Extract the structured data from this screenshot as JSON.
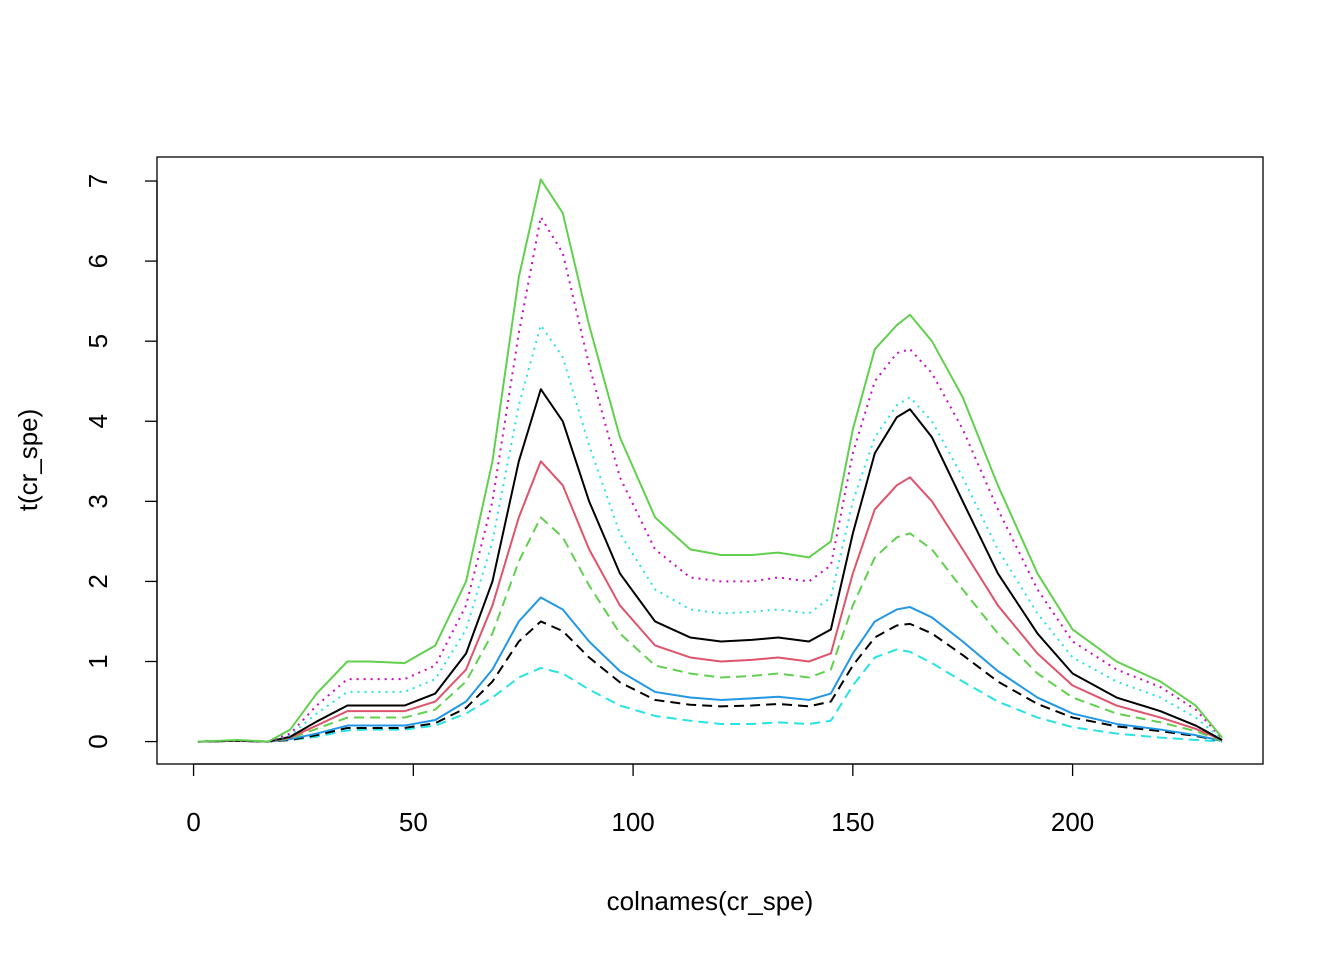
{
  "chart_data": {
    "type": "line",
    "x_label": "colnames(cr_spe)",
    "y_label": "t(cr_spe)",
    "x": [
      1,
      10,
      17,
      22,
      28,
      35,
      40,
      48,
      55,
      62,
      68,
      74,
      79,
      84,
      90,
      97,
      105,
      113,
      120,
      127,
      133,
      140,
      145,
      150,
      155,
      160,
      163,
      168,
      175,
      183,
      192,
      200,
      210,
      220,
      228,
      234
    ],
    "series": [
      {
        "color": "#61D04F",
        "dash": "solid",
        "values": [
          0,
          0.02,
          0,
          0.15,
          0.6,
          1.0,
          1.0,
          0.98,
          1.2,
          2.0,
          3.5,
          5.8,
          7.02,
          6.6,
          5.2,
          3.8,
          2.8,
          2.4,
          2.33,
          2.33,
          2.36,
          2.3,
          2.5,
          3.9,
          4.9,
          5.2,
          5.33,
          5.0,
          4.3,
          3.2,
          2.1,
          1.4,
          1.0,
          0.75,
          0.45,
          0.05
        ]
      },
      {
        "color": "#CD0BBC",
        "dash": "dotted",
        "values": [
          0,
          0.01,
          0,
          0.1,
          0.45,
          0.78,
          0.78,
          0.78,
          0.95,
          1.7,
          3.0,
          5.1,
          6.55,
          6.1,
          4.7,
          3.3,
          2.4,
          2.05,
          2.0,
          2.0,
          2.05,
          2.0,
          2.2,
          3.6,
          4.5,
          4.85,
          4.9,
          4.6,
          3.9,
          2.9,
          1.9,
          1.25,
          0.9,
          0.68,
          0.4,
          0.04
        ]
      },
      {
        "color": "#28E2E5",
        "dash": "dotted",
        "values": [
          0,
          0.01,
          0,
          0.08,
          0.35,
          0.62,
          0.62,
          0.62,
          0.78,
          1.4,
          2.5,
          4.2,
          5.2,
          4.8,
          3.7,
          2.6,
          1.9,
          1.65,
          1.6,
          1.62,
          1.65,
          1.6,
          1.8,
          3.0,
          3.8,
          4.2,
          4.3,
          4.0,
          3.3,
          2.4,
          1.6,
          1.05,
          0.75,
          0.55,
          0.3,
          0.03
        ]
      },
      {
        "color": "#000000",
        "dash": "solid",
        "values": [
          0,
          0.01,
          0,
          0.06,
          0.25,
          0.45,
          0.45,
          0.45,
          0.6,
          1.1,
          2.0,
          3.5,
          4.4,
          4.0,
          3.0,
          2.1,
          1.5,
          1.3,
          1.25,
          1.27,
          1.3,
          1.25,
          1.4,
          2.6,
          3.6,
          4.05,
          4.15,
          3.8,
          3.0,
          2.1,
          1.35,
          0.85,
          0.55,
          0.38,
          0.2,
          0.02
        ]
      },
      {
        "color": "#DF536B",
        "dash": "solid",
        "values": [
          0,
          0.01,
          0,
          0.05,
          0.2,
          0.38,
          0.38,
          0.38,
          0.5,
          0.9,
          1.7,
          2.8,
          3.5,
          3.2,
          2.4,
          1.7,
          1.2,
          1.05,
          1.0,
          1.02,
          1.05,
          1.0,
          1.1,
          2.1,
          2.9,
          3.2,
          3.3,
          3.0,
          2.4,
          1.7,
          1.1,
          0.7,
          0.45,
          0.3,
          0.16,
          0.02
        ]
      },
      {
        "color": "#61D04F",
        "dash": "dashed",
        "values": [
          0,
          0.01,
          0,
          0.04,
          0.16,
          0.3,
          0.3,
          0.3,
          0.4,
          0.75,
          1.35,
          2.25,
          2.8,
          2.55,
          1.95,
          1.35,
          0.95,
          0.85,
          0.8,
          0.82,
          0.85,
          0.8,
          0.9,
          1.7,
          2.3,
          2.55,
          2.6,
          2.4,
          1.9,
          1.35,
          0.85,
          0.55,
          0.35,
          0.24,
          0.13,
          0.01
        ]
      },
      {
        "color": "#2297E6",
        "dash": "solid",
        "values": [
          0,
          0.01,
          0,
          0.03,
          0.1,
          0.2,
          0.2,
          0.2,
          0.27,
          0.5,
          0.9,
          1.5,
          1.8,
          1.65,
          1.25,
          0.88,
          0.62,
          0.55,
          0.52,
          0.54,
          0.56,
          0.52,
          0.6,
          1.1,
          1.5,
          1.65,
          1.68,
          1.55,
          1.25,
          0.88,
          0.55,
          0.35,
          0.22,
          0.15,
          0.08,
          0.01
        ]
      },
      {
        "color": "#000000",
        "dash": "dashed",
        "values": [
          0,
          0.01,
          0,
          0.02,
          0.08,
          0.17,
          0.17,
          0.17,
          0.23,
          0.42,
          0.75,
          1.25,
          1.5,
          1.38,
          1.05,
          0.74,
          0.52,
          0.46,
          0.44,
          0.45,
          0.47,
          0.44,
          0.5,
          0.95,
          1.3,
          1.45,
          1.47,
          1.35,
          1.08,
          0.75,
          0.47,
          0.3,
          0.19,
          0.13,
          0.07,
          0.01
        ]
      },
      {
        "color": "#28E2E5",
        "dash": "dashed",
        "values": [
          0,
          0.01,
          0,
          0.02,
          0.06,
          0.14,
          0.15,
          0.15,
          0.2,
          0.35,
          0.55,
          0.8,
          0.92,
          0.85,
          0.65,
          0.45,
          0.32,
          0.26,
          0.22,
          0.22,
          0.24,
          0.22,
          0.26,
          0.7,
          1.05,
          1.15,
          1.12,
          0.98,
          0.75,
          0.5,
          0.3,
          0.18,
          0.1,
          0.05,
          0.02,
          0.0
        ]
      }
    ],
    "xlim": [
      -8.32,
      243.32
    ],
    "ylim": [
      -0.28,
      7.3
    ],
    "xticks": [
      0,
      50,
      100,
      150,
      200
    ],
    "yticks": [
      0,
      1,
      2,
      3,
      4,
      5,
      6,
      7
    ],
    "grid": false
  }
}
